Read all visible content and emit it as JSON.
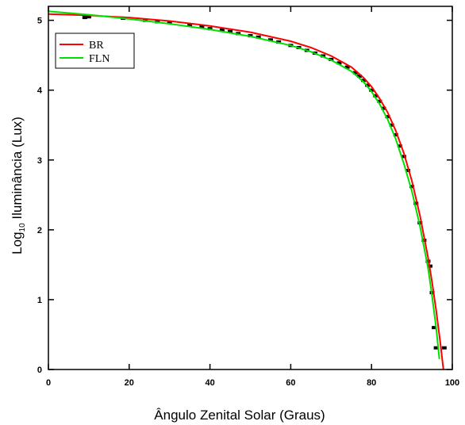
{
  "chart_data": {
    "type": "line",
    "title": "",
    "xlabel": "Ângulo Zenital Solar (Graus)",
    "ylabel_main": "Log",
    "ylabel_sub": "10",
    "ylabel_rest": " Iluminância (Lux)",
    "xlim": [
      0,
      100
    ],
    "ylim": [
      0,
      5.2
    ],
    "x_ticks": [
      0,
      20,
      40,
      60,
      80,
      100
    ],
    "y_ticks": [
      0,
      1,
      2,
      3,
      4,
      5
    ],
    "grid": false,
    "legend_position": "top-left",
    "series": [
      {
        "name": "BR",
        "color": "#ff0000",
        "points": [
          [
            0,
            5.09
          ],
          [
            10,
            5.07
          ],
          [
            20,
            5.04
          ],
          [
            30,
            4.99
          ],
          [
            40,
            4.92
          ],
          [
            50,
            4.83
          ],
          [
            60,
            4.7
          ],
          [
            65,
            4.61
          ],
          [
            70,
            4.49
          ],
          [
            75,
            4.33
          ],
          [
            78,
            4.18
          ],
          [
            80,
            4.05
          ],
          [
            82,
            3.88
          ],
          [
            84,
            3.68
          ],
          [
            86,
            3.42
          ],
          [
            88,
            3.1
          ],
          [
            90,
            2.7
          ],
          [
            92,
            2.2
          ],
          [
            94,
            1.6
          ],
          [
            95,
            1.25
          ],
          [
            96,
            0.85
          ],
          [
            97,
            0.4
          ],
          [
            97.8,
            0.0
          ]
        ]
      },
      {
        "name": "FLN",
        "color": "#00e000",
        "points": [
          [
            0,
            5.13
          ],
          [
            10,
            5.08
          ],
          [
            20,
            5.02
          ],
          [
            30,
            4.95
          ],
          [
            40,
            4.87
          ],
          [
            50,
            4.77
          ],
          [
            60,
            4.64
          ],
          [
            65,
            4.55
          ],
          [
            70,
            4.43
          ],
          [
            75,
            4.27
          ],
          [
            78,
            4.12
          ],
          [
            80,
            3.98
          ],
          [
            82,
            3.8
          ],
          [
            84,
            3.58
          ],
          [
            86,
            3.3
          ],
          [
            88,
            2.95
          ],
          [
            90,
            2.55
          ],
          [
            92,
            2.05
          ],
          [
            94,
            1.45
          ],
          [
            95,
            1.05
          ],
          [
            96,
            0.6
          ],
          [
            96.8,
            0.15
          ]
        ]
      }
    ],
    "observations": {
      "name": "",
      "color": "#000000",
      "points": [
        [
          9,
          5.04
        ],
        [
          10,
          5.05
        ],
        [
          18.5,
          5.03
        ],
        [
          24,
          5.0
        ],
        [
          27,
          4.98
        ],
        [
          30,
          4.97
        ],
        [
          35,
          4.93
        ],
        [
          38,
          4.91
        ],
        [
          40,
          4.88
        ],
        [
          43,
          4.86
        ],
        [
          45,
          4.84
        ],
        [
          47,
          4.81
        ],
        [
          50,
          4.78
        ],
        [
          52,
          4.76
        ],
        [
          55,
          4.72
        ],
        [
          57,
          4.69
        ],
        [
          60,
          4.64
        ],
        [
          62,
          4.61
        ],
        [
          64,
          4.57
        ],
        [
          66,
          4.53
        ],
        [
          68,
          4.49
        ],
        [
          70,
          4.44
        ],
        [
          72,
          4.39
        ],
        [
          74,
          4.33
        ],
        [
          76,
          4.25
        ],
        [
          77,
          4.2
        ],
        [
          78,
          4.14
        ],
        [
          79,
          4.07
        ],
        [
          80,
          4.0
        ],
        [
          81,
          3.92
        ],
        [
          82,
          3.84
        ],
        [
          83,
          3.74
        ],
        [
          84,
          3.62
        ],
        [
          85,
          3.5
        ],
        [
          86,
          3.36
        ],
        [
          87,
          3.2
        ],
        [
          88,
          3.05
        ],
        [
          89,
          2.85
        ],
        [
          90,
          2.62
        ],
        [
          91,
          2.38
        ],
        [
          92,
          2.1
        ],
        [
          93,
          1.85
        ],
        [
          94,
          1.55
        ],
        [
          94.5,
          1.48
        ],
        [
          95,
          1.1
        ],
        [
          95.5,
          0.6
        ],
        [
          96,
          0.31
        ],
        [
          98,
          0.31
        ]
      ]
    }
  }
}
